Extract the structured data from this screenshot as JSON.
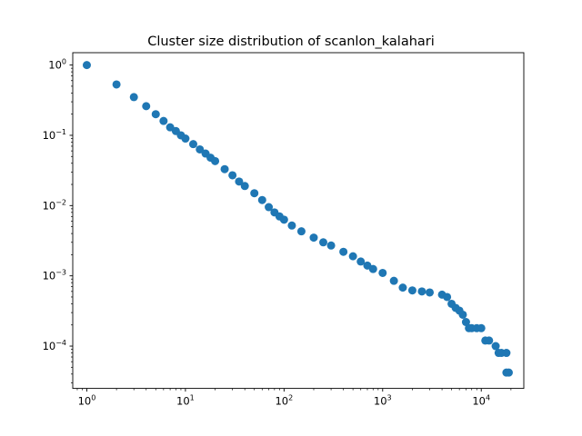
{
  "chart_data": {
    "type": "scatter",
    "title": "Cluster size distribution of scanlon_kalahari",
    "xlabel": "",
    "ylabel": "",
    "xscale": "log",
    "yscale": "log",
    "xlim": [
      0.72,
      27000
    ],
    "ylim": [
      2.5e-05,
      1.5
    ],
    "x_ticks": [
      {
        "base": "10",
        "exp": "0",
        "value": 1
      },
      {
        "base": "10",
        "exp": "1",
        "value": 10
      },
      {
        "base": "10",
        "exp": "2",
        "value": 100
      },
      {
        "base": "10",
        "exp": "3",
        "value": 1000
      },
      {
        "base": "10",
        "exp": "4",
        "value": 10000
      }
    ],
    "y_ticks": [
      {
        "base": "10",
        "exp": "0",
        "value": 1
      },
      {
        "base": "10",
        "exp": "−1",
        "value": 0.1
      },
      {
        "base": "10",
        "exp": "−2",
        "value": 0.01
      },
      {
        "base": "10",
        "exp": "−3",
        "value": 0.001
      },
      {
        "base": "10",
        "exp": "−4",
        "value": 0.0001
      }
    ],
    "grid": false,
    "marker_color": "#1f77b4",
    "series": [
      {
        "points": [
          [
            1,
            1.0
          ],
          [
            2,
            0.53
          ],
          [
            3,
            0.35
          ],
          [
            4,
            0.26
          ],
          [
            5,
            0.2
          ],
          [
            6,
            0.16
          ],
          [
            7,
            0.13
          ],
          [
            8,
            0.115
          ],
          [
            9,
            0.1
          ],
          [
            10,
            0.09
          ],
          [
            12,
            0.075
          ],
          [
            14,
            0.063
          ],
          [
            16,
            0.055
          ],
          [
            18,
            0.048
          ],
          [
            20,
            0.043
          ],
          [
            25,
            0.033
          ],
          [
            30,
            0.027
          ],
          [
            35,
            0.022
          ],
          [
            40,
            0.019
          ],
          [
            50,
            0.015
          ],
          [
            60,
            0.012
          ],
          [
            70,
            0.0095
          ],
          [
            80,
            0.008
          ],
          [
            90,
            0.007
          ],
          [
            100,
            0.0063
          ],
          [
            120,
            0.0052
          ],
          [
            150,
            0.0043
          ],
          [
            200,
            0.0035
          ],
          [
            250,
            0.003
          ],
          [
            300,
            0.0027
          ],
          [
            400,
            0.0022
          ],
          [
            500,
            0.0019
          ],
          [
            600,
            0.0016
          ],
          [
            700,
            0.0014
          ],
          [
            800,
            0.00125
          ],
          [
            1000,
            0.0011
          ],
          [
            1300,
            0.00085
          ],
          [
            1600,
            0.00068
          ],
          [
            2000,
            0.00062
          ],
          [
            2500,
            0.0006
          ],
          [
            3000,
            0.00058
          ],
          [
            4000,
            0.00054
          ],
          [
            4500,
            0.0005
          ],
          [
            5000,
            0.0004
          ],
          [
            5500,
            0.00035
          ],
          [
            6000,
            0.00032
          ],
          [
            6500,
            0.00028
          ],
          [
            7000,
            0.00022
          ],
          [
            7500,
            0.00018
          ],
          [
            8000,
            0.00018
          ],
          [
            9000,
            0.00018
          ],
          [
            10000,
            0.00018
          ],
          [
            11000,
            0.00012
          ],
          [
            12000,
            0.00012
          ],
          [
            14000,
            0.0001
          ],
          [
            15000,
            8e-05
          ],
          [
            16000,
            8e-05
          ],
          [
            18000,
            8e-05
          ],
          [
            18000,
            4.2e-05
          ],
          [
            19000,
            4.2e-05
          ]
        ]
      }
    ]
  }
}
